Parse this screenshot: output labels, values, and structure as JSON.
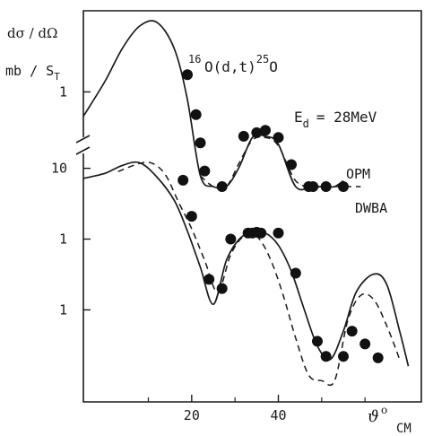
{
  "chart_data": {
    "type": "line",
    "x_unit": "deg",
    "y_scale": "log",
    "xlim": [
      -5,
      73
    ],
    "x_ticks": [
      20,
      40
    ],
    "upper_panel": {
      "label": "1",
      "ylim_log": [
        -0.7,
        0.6
      ],
      "series": [
        {
          "name": "OPM",
          "style": "solid",
          "x": [
            -5,
            0,
            4,
            8,
            12,
            16,
            19,
            22,
            25,
            28,
            31,
            34,
            37,
            40,
            44,
            48,
            51,
            53,
            55
          ],
          "y": [
            0.66,
            1.2,
            2.1,
            3.07,
            3.26,
            2.08,
            0.88,
            0.24,
            0.069,
            0.079,
            0.28,
            0.46,
            0.47,
            0.41,
            0.19,
            0.048,
            0.022,
            0.08,
            0.22
          ]
        },
        {
          "name": "DWBA",
          "style": "dashed",
          "x": [
            22,
            25,
            28,
            31,
            34,
            37,
            40,
            44,
            48,
            51,
            53,
            56,
            59
          ],
          "y": [
            0.24,
            0.1,
            0.14,
            0.3,
            0.44,
            0.46,
            0.4,
            0.22,
            0.07,
            0.042,
            0.036,
            0.041,
            0.045
          ]
        }
      ],
      "points": {
        "x": [
          19,
          21,
          22,
          23,
          27,
          32,
          35,
          37,
          40,
          43,
          47,
          48,
          51,
          55
        ],
        "y": [
          1.34,
          0.68,
          0.42,
          0.26,
          0.12,
          0.47,
          0.5,
          0.52,
          0.46,
          0.29,
          0.1,
          0.047,
          0.023,
          0.035
        ]
      }
    },
    "lower_panel": {
      "ytick_labels": [
        "10",
        "1",
        "1"
      ],
      "ylim_log": [
        -2.3,
        1.35
      ],
      "series": [
        {
          "name": "OPM",
          "style": "solid",
          "x": [
            -5,
            0,
            4,
            8,
            12,
            16,
            19,
            22,
            25,
            28,
            31,
            34,
            37,
            40,
            43,
            46,
            49,
            52,
            55,
            58,
            62,
            65,
            68,
            70
          ],
          "y": [
            7.2,
            8.5,
            11,
            12,
            7.5,
            3.5,
            1.3,
            0.4,
            0.12,
            0.5,
            1.0,
            1.25,
            1.22,
            0.82,
            0.35,
            0.1,
            0.031,
            0.02,
            0.05,
            0.18,
            0.32,
            0.23,
            0.05,
            0.016
          ]
        },
        {
          "name": "DWBA",
          "style": "dashed",
          "x": [
            3,
            8,
            11,
            14,
            17,
            20,
            23,
            26,
            29,
            32,
            35,
            38,
            41,
            44,
            47,
            50,
            53,
            56,
            59,
            62,
            65,
            68
          ],
          "y": [
            9,
            11.7,
            11.7,
            8,
            3.3,
            1.4,
            0.5,
            0.18,
            0.6,
            1.1,
            1.1,
            0.55,
            0.17,
            0.04,
            0.012,
            0.01,
            0.01,
            0.07,
            0.16,
            0.14,
            0.06,
            0.02
          ]
        }
      ],
      "points": {
        "x": [
          18,
          20,
          24,
          27,
          29,
          33,
          34,
          35,
          36,
          40,
          44,
          49,
          51,
          55,
          57,
          60,
          63
        ],
        "y": [
          6.8,
          2.1,
          0.27,
          0.2,
          1.0,
          1.22,
          1.22,
          1.25,
          1.22,
          1.22,
          0.33,
          0.036,
          0.022,
          0.022,
          0.05,
          0.033,
          0.021
        ]
      }
    }
  },
  "labels": {
    "ylabel_line1": "dσ / dΩ",
    "ylabel_line2": "mb / S",
    "ylabel_sub": "T",
    "reaction_pre": "16",
    "reaction_mid": "O(d,t)",
    "reaction_sup2": "25",
    "reaction_end": "O",
    "energy_pre": "E",
    "energy_sub": "d",
    "energy_value": "=  28MeV",
    "opm": "OPM",
    "dwba": "DWBA",
    "xaxis_symbol": "ϑ",
    "xaxis_deg": "o",
    "xaxis_cm": "CM"
  }
}
